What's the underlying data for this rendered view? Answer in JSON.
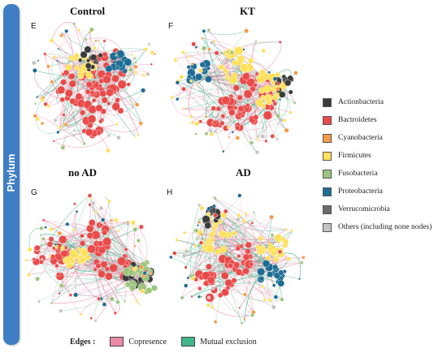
{
  "side_label": "Phylum",
  "panels": [
    {
      "id": "E",
      "title": "Control"
    },
    {
      "id": "F",
      "title": "KT"
    },
    {
      "id": "G",
      "title": "no AD"
    },
    {
      "id": "H",
      "title": "AD"
    }
  ],
  "legend": [
    {
      "label": "Actionbacteria",
      "color": "#3b3b3b"
    },
    {
      "label": "Bactroidetes",
      "color": "#e94b4b"
    },
    {
      "label": "Cyanobacteria",
      "color": "#f59a45"
    },
    {
      "label": "Firmicutes",
      "color": "#ffe05a"
    },
    {
      "label": "Fusobacteria",
      "color": "#9cc47c"
    },
    {
      "label": "Proteobacteria",
      "color": "#1e6d94"
    },
    {
      "label": "Verrucomicrobia",
      "color": "#6b6b6b"
    },
    {
      "label": "Others (including none nodes)",
      "color": "#c4c4c4"
    }
  ],
  "edges": {
    "label": "Edges :",
    "items": [
      {
        "label": "Copresence",
        "color": "#e98aa6"
      },
      {
        "label": "Mutual exclusion",
        "color": "#3fb68b"
      }
    ]
  }
}
